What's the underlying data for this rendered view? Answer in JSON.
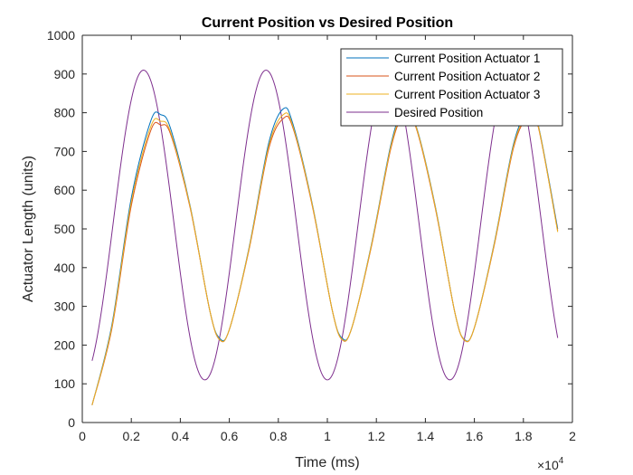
{
  "chart_data": {
    "type": "line",
    "title": "Current Position vs Desired Position",
    "xlabel": "Time (ms)",
    "ylabel": "Actuator Length (units)",
    "x_exponent_label": "×10",
    "x_exponent_power": "4",
    "xlim": [
      0,
      20000
    ],
    "ylim": [
      0,
      1000
    ],
    "x_ticks": [
      0,
      2000,
      4000,
      6000,
      8000,
      10000,
      12000,
      14000,
      16000,
      18000,
      20000
    ],
    "x_tick_labels": [
      "0",
      "0.2",
      "0.4",
      "0.6",
      "0.8",
      "1",
      "1.2",
      "1.4",
      "1.6",
      "1.8",
      "2"
    ],
    "y_ticks": [
      0,
      100,
      200,
      300,
      400,
      500,
      600,
      700,
      800,
      900,
      1000
    ],
    "y_tick_labels": [
      "0",
      "100",
      "200",
      "300",
      "400",
      "500",
      "600",
      "700",
      "800",
      "900",
      "1000"
    ],
    "grid": false,
    "legend_position": "top-right",
    "series": [
      {
        "name": "Current Position Actuator 1",
        "color": "#0072BD",
        "x": [
          400,
          1200,
          2000,
          2800,
          3200,
          3600,
          4400,
          5200,
          5600,
          6000,
          6800,
          7600,
          8200,
          8600,
          9400,
          10200,
          10600,
          11000,
          11800,
          12600,
          13100,
          13600,
          14400,
          15200,
          15600,
          16000,
          16800,
          17600,
          18200,
          18600,
          19400
        ],
        "y": [
          45,
          250,
          580,
          780,
          795,
          760,
          560,
          290,
          218,
          240,
          450,
          720,
          810,
          770,
          560,
          290,
          218,
          245,
          460,
          720,
          805,
          770,
          560,
          285,
          214,
          245,
          460,
          720,
          805,
          770,
          500
        ]
      },
      {
        "name": "Current Position Actuator 2",
        "color": "#D95319",
        "x": [
          400,
          1200,
          2000,
          2800,
          3200,
          3600,
          4400,
          5200,
          5600,
          6000,
          6800,
          7600,
          8200,
          8600,
          9400,
          10200,
          10600,
          11000,
          11800,
          12600,
          13100,
          13600,
          14400,
          15200,
          15600,
          16000,
          16800,
          17600,
          18200,
          18600,
          19400
        ],
        "y": [
          45,
          240,
          560,
          755,
          768,
          745,
          555,
          290,
          214,
          240,
          445,
          705,
          785,
          760,
          555,
          290,
          214,
          245,
          455,
          710,
          790,
          765,
          555,
          285,
          212,
          245,
          455,
          710,
          790,
          765,
          495
        ]
      },
      {
        "name": "Current Position Actuator 3",
        "color": "#EDB120",
        "x": [
          400,
          1200,
          2000,
          2800,
          3200,
          3600,
          4400,
          5200,
          5600,
          6000,
          6800,
          7600,
          8200,
          8600,
          9400,
          10200,
          10600,
          11000,
          11800,
          12600,
          13100,
          13600,
          14400,
          15200,
          15600,
          16000,
          16800,
          17600,
          18200,
          18600,
          19400
        ],
        "y": [
          45,
          245,
          570,
          765,
          778,
          750,
          558,
          290,
          215,
          240,
          448,
          712,
          795,
          764,
          558,
          290,
          215,
          245,
          458,
          715,
          796,
          768,
          558,
          285,
          213,
          245,
          458,
          715,
          796,
          768,
          492
        ]
      },
      {
        "name": "Desired Position",
        "color": "#7E2F8E",
        "amplitude": 400,
        "offset": 510,
        "period": 5000,
        "peak_at": 2500,
        "x_start": 400,
        "x_end": 19400
      }
    ]
  }
}
